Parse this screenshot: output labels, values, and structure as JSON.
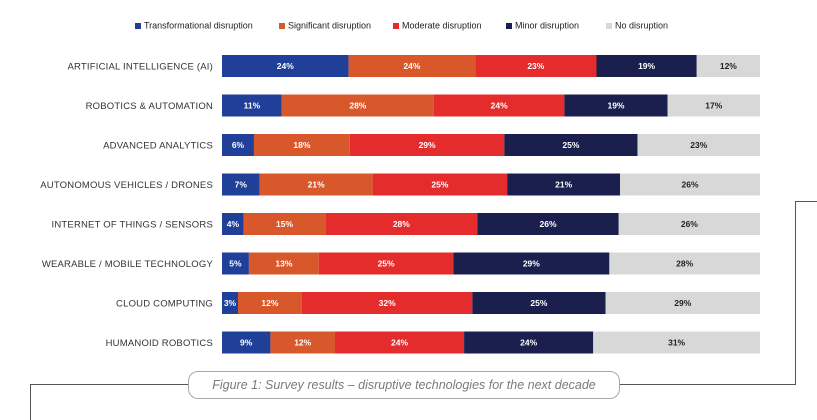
{
  "caption": "Figure 1: Survey results – disruptive technologies for the next decade",
  "chart_data": {
    "type": "bar",
    "orientation": "horizontal",
    "stacked": true,
    "percent_stacked": true,
    "categories": [
      "ARTIFICIAL INTELLIGENCE (AI)",
      "ROBOTICS & AUTOMATION",
      "ADVANCED ANALYTICS",
      "AUTONOMOUS VEHICLES / DRONES",
      "INTERNET OF THINGS / SENSORS",
      "WEARABLE / MOBILE TECHNOLOGY",
      "CLOUD COMPUTING",
      "HUMANOID ROBOTICS"
    ],
    "series": [
      {
        "name": "Transformational disruption",
        "color": "#1f3f99",
        "label_color": "#ffffff",
        "values": [
          24,
          11,
          6,
          7,
          4,
          5,
          3,
          9
        ]
      },
      {
        "name": "Significant disruption",
        "color": "#d9582b",
        "label_color": "#ffffff",
        "values": [
          24,
          28,
          18,
          21,
          15,
          13,
          12,
          12
        ]
      },
      {
        "name": "Moderate disruption",
        "color": "#e42c2c",
        "label_color": "#ffffff",
        "values": [
          23,
          24,
          29,
          25,
          28,
          25,
          32,
          24
        ]
      },
      {
        "name": "Minor disruption",
        "color": "#1a1f4d",
        "label_color": "#ffffff",
        "values": [
          19,
          19,
          25,
          21,
          26,
          29,
          25,
          24
        ]
      },
      {
        "name": "No disruption",
        "color": "#d8d8d8",
        "label_color": "#222222",
        "values": [
          12,
          17,
          23,
          26,
          26,
          28,
          29,
          31
        ]
      }
    ],
    "value_suffix": "%",
    "legend_position": "top",
    "grid": false
  }
}
